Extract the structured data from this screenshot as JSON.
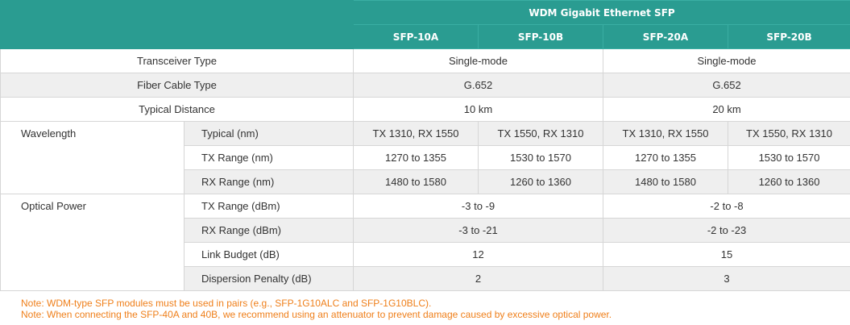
{
  "header": {
    "group_title": "WDM Gigabit Ethernet SFP",
    "models": [
      "SFP-10A",
      "SFP-10B",
      "SFP-20A",
      "SFP-20B"
    ]
  },
  "rows": {
    "transceiver_type": {
      "label": "Transceiver Type",
      "v10": "Single-mode",
      "v20": "Single-mode"
    },
    "fiber_cable_type": {
      "label": "Fiber Cable Type",
      "v10": "G.652",
      "v20": "G.652"
    },
    "typical_distance": {
      "label": "Typical Distance",
      "v10": "10 km",
      "v20": "20 km"
    }
  },
  "wavelength": {
    "label": "Wavelength",
    "typical": {
      "label": "Typical (nm)",
      "values": [
        "TX 1310, RX 1550",
        "TX 1550, RX 1310",
        "TX 1310, RX 1550",
        "TX 1550, RX 1310"
      ]
    },
    "tx_range": {
      "label": "TX Range (nm)",
      "values": [
        "1270 to 1355",
        "1530 to 1570",
        "1270 to 1355",
        "1530 to 1570"
      ]
    },
    "rx_range": {
      "label": "RX Range (nm)",
      "values": [
        "1480 to 1580",
        "1260 to 1360",
        "1480 to 1580",
        "1260 to 1360"
      ]
    }
  },
  "optical_power": {
    "label": "Optical Power",
    "tx_range": {
      "label": "TX Range (dBm)",
      "v10": "-3 to -9",
      "v20": "-2 to -8"
    },
    "rx_range": {
      "label": "RX Range (dBm)",
      "v10": "-3 to -21",
      "v20": "-2 to -23"
    },
    "link_budget": {
      "label": "Link Budget (dB)",
      "v10": "12",
      "v20": "15"
    },
    "dispersion_penalty": {
      "label": "Dispersion Penalty (dB)",
      "v10": "2",
      "v20": "3"
    }
  },
  "notes": [
    "Note: WDM-type SFP modules must be used in pairs (e.g., SFP-1G10ALC and SFP-1G10BLC).",
    "Note: When connecting the SFP-40A and 40B, we recommend using an attenuator to prevent damage caused by excessive optical power."
  ],
  "colors": {
    "header_bg": "#2a9c91",
    "note_text": "#ef7f1a",
    "row_alt": "#efefef"
  }
}
